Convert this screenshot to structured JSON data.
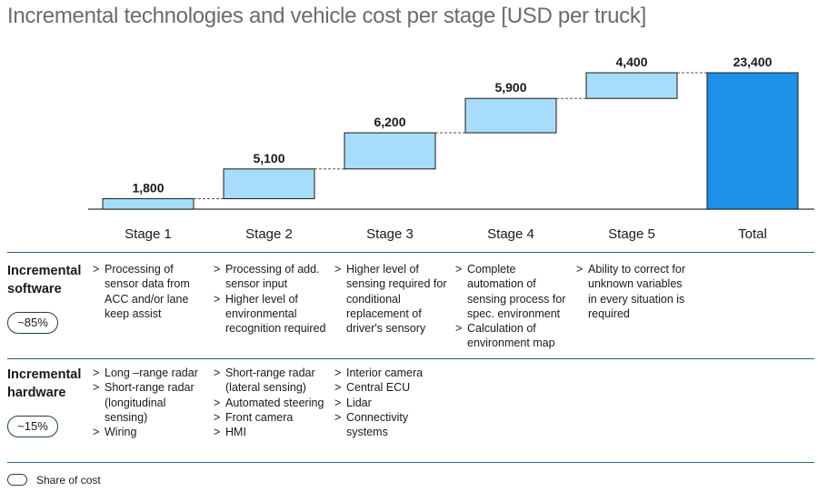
{
  "title": "Incremental technologies and vehicle cost per stage [USD per truck]",
  "chart_data": {
    "type": "bar",
    "subtype": "waterfall",
    "categories": [
      "Stage 1",
      "Stage 2",
      "Stage 3",
      "Stage 4",
      "Stage 5",
      "Total"
    ],
    "values": [
      1800,
      5100,
      6200,
      5900,
      4400,
      23400
    ],
    "value_labels": [
      "1,800",
      "5,100",
      "6,200",
      "5,900",
      "4,400",
      "23,400"
    ],
    "ylim": [
      0,
      23400
    ],
    "grid": false,
    "colors": {
      "increment": "#a8dcfb",
      "total": "#1e90e8",
      "connector": "#555555"
    }
  },
  "rows": [
    {
      "label": [
        "Incremental",
        "software"
      ],
      "share": "~85%",
      "cells": [
        [
          "Processing of sensor data from ACC and/or lane keep assist"
        ],
        [
          "Processing of add. sensor input",
          "Higher level of environmental recognition required"
        ],
        [
          "Higher level of sensing required for conditional replacement of driver's sensory"
        ],
        [
          "Complete automation of sensing process for spec. environment",
          "Calculation of environment map"
        ],
        [
          "Ability to correct for unknown variables in every situation is required"
        ]
      ]
    },
    {
      "label": [
        "Incremental",
        "hardware"
      ],
      "share": "~15%",
      "cells": [
        [
          "Long –range radar",
          "Short-range radar (longitudinal sensing)",
          "Wiring"
        ],
        [
          "Short-range radar (lateral sensing)",
          "Automated steering",
          "Front camera",
          "HMI"
        ],
        [
          "Interior camera",
          "Central ECU",
          "Lidar",
          "Connectivity systems"
        ],
        [],
        []
      ]
    }
  ],
  "bullet_marker": ">",
  "legend": {
    "label": "Share of cost"
  }
}
